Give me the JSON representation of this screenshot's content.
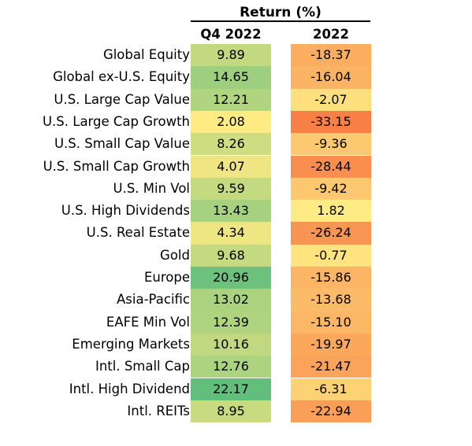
{
  "header": {
    "title": "Return (%)",
    "col_q4": "Q4 2022",
    "col_year": "2022"
  },
  "chart_data": {
    "type": "table",
    "title": "Return (%)",
    "columns": [
      "Q4 2022",
      "2022"
    ],
    "rows": [
      {
        "label": "Global Equity",
        "q4": "9.89",
        "yr": "-18.37"
      },
      {
        "label": "Global ex-U.S. Equity",
        "q4": "14.65",
        "yr": "-16.04"
      },
      {
        "label": "U.S. Large Cap Value",
        "q4": "12.21",
        "yr": "-2.07"
      },
      {
        "label": "U.S. Large Cap Growth",
        "q4": "2.08",
        "yr": "-33.15"
      },
      {
        "label": "U.S. Small Cap Value",
        "q4": "8.26",
        "yr": "-9.36"
      },
      {
        "label": "U.S. Small Cap Growth",
        "q4": "4.07",
        "yr": "-28.44"
      },
      {
        "label": "U.S. Min Vol",
        "q4": "9.59",
        "yr": "-9.42"
      },
      {
        "label": "U.S. High Dividends",
        "q4": "13.43",
        "yr": "1.82"
      },
      {
        "label": "U.S. Real Estate",
        "q4": "4.34",
        "yr": "-26.24"
      },
      {
        "label": "Gold",
        "q4": "9.68",
        "yr": "-0.77"
      },
      {
        "label": "Europe",
        "q4": "20.96",
        "yr": "-15.86"
      },
      {
        "label": "Asia-Pacific",
        "q4": "13.02",
        "yr": "-13.68"
      },
      {
        "label": "EAFE Min Vol",
        "q4": "12.39",
        "yr": "-15.10"
      },
      {
        "label": "Emerging Markets",
        "q4": "10.16",
        "yr": "-19.97"
      },
      {
        "label": "Intl. Small Cap",
        "q4": "12.76",
        "yr": "-21.47"
      },
      {
        "label": "Intl. High Dividend",
        "q4": "22.17",
        "yr": "-6.31"
      },
      {
        "label": "Intl. REITs",
        "q4": "8.95",
        "yr": "-22.94"
      }
    ]
  }
}
